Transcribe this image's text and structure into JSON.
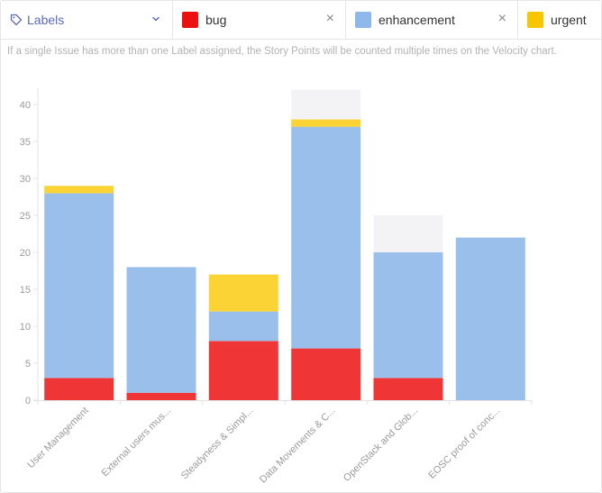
{
  "filter": {
    "dropdown_label": "Labels",
    "chips": [
      {
        "label": "bug",
        "color": "#ee1111"
      },
      {
        "label": "enhancement",
        "color": "#8fb8ea"
      },
      {
        "label": "urgent",
        "color": "#f7c600"
      }
    ],
    "close_glyph": "×"
  },
  "note": "If a single Issue has more than one Label assigned, the Story Points will be counted multiple times on the Velocity chart.",
  "chart_data": {
    "type": "bar",
    "stacked": true,
    "categories": [
      "User Management",
      "External users mus...",
      "Steadyness & Simpl...",
      "Data Movements & C...",
      "OpenStack and Glob...",
      "EOSC proof of conc..."
    ],
    "series": [
      {
        "name": "bug",
        "color": "#ef3535",
        "values": [
          3,
          1,
          8,
          7,
          3,
          0
        ]
      },
      {
        "name": "enhancement",
        "color": "#99bfea",
        "values": [
          25,
          17,
          4,
          30,
          17,
          22
        ]
      },
      {
        "name": "urgent",
        "color": "#fbd334",
        "values": [
          1,
          0,
          5,
          1,
          0,
          0
        ]
      },
      {
        "color": "#f3f3f5",
        "values": [
          0,
          0,
          0,
          4,
          5,
          0
        ]
      }
    ],
    "yticks": [
      0,
      5,
      10,
      15,
      20,
      25,
      30,
      35,
      40
    ],
    "ylim": [
      0,
      42
    ],
    "grid": false,
    "legend": "top"
  }
}
